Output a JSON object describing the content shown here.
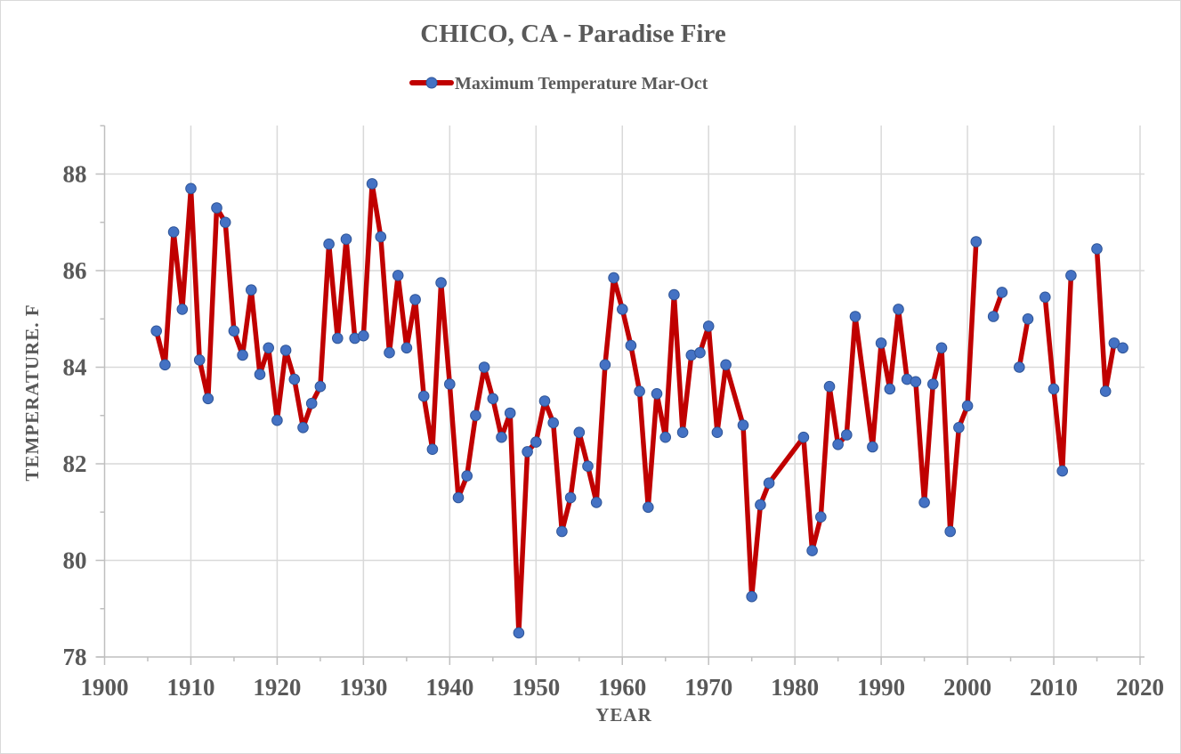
{
  "chart_data": {
    "type": "line",
    "title": "CHICO, CA - Paradise Fire",
    "legend_label": "Maximum Temperature Mar-Oct",
    "legend_position": "top",
    "xlabel": "YEAR",
    "ylabel": "TEMPERATURE. F",
    "xlim": [
      1900,
      2020
    ],
    "ylim": [
      78,
      89
    ],
    "x_ticks": [
      1900,
      1910,
      1920,
      1930,
      1940,
      1950,
      1960,
      1970,
      1980,
      1990,
      2000,
      2010,
      2020
    ],
    "y_ticks": [
      78,
      80,
      82,
      84,
      86,
      88
    ],
    "y_minor_tick_step": 1,
    "grid": true,
    "colors": {
      "line": "#C00000",
      "marker_fill": "#4472C4",
      "marker_edge": "#2F5597",
      "grid": "#D9D9D9",
      "axis": "#BFBFBF",
      "text": "#595959"
    },
    "series": [
      {
        "name": "Maximum Temperature Mar-Oct",
        "points": [
          [
            1906,
            84.75
          ],
          [
            1907,
            84.05
          ],
          [
            1908,
            86.8
          ],
          [
            1909,
            85.2
          ],
          [
            1910,
            87.7
          ],
          [
            1911,
            84.15
          ],
          [
            1912,
            83.35
          ],
          [
            1913,
            87.3
          ],
          [
            1914,
            87.0
          ],
          [
            1915,
            84.75
          ],
          [
            1916,
            84.25
          ],
          [
            1917,
            85.6
          ],
          [
            1918,
            83.85
          ],
          [
            1919,
            84.4
          ],
          [
            1920,
            82.9
          ],
          [
            1921,
            84.35
          ],
          [
            1922,
            83.75
          ],
          [
            1923,
            82.75
          ],
          [
            1924,
            83.25
          ],
          [
            1925,
            83.6
          ],
          [
            1926,
            86.55
          ],
          [
            1927,
            84.6
          ],
          [
            1928,
            86.65
          ],
          [
            1929,
            84.6
          ],
          [
            1930,
            84.65
          ],
          [
            1931,
            87.8
          ],
          [
            1932,
            86.7
          ],
          [
            1933,
            84.3
          ],
          [
            1934,
            85.9
          ],
          [
            1935,
            84.4
          ],
          [
            1936,
            85.4
          ],
          [
            1937,
            83.4
          ],
          [
            1938,
            82.3
          ],
          [
            1939,
            85.75
          ],
          [
            1940,
            83.65
          ],
          [
            1941,
            81.3
          ],
          [
            1942,
            81.75
          ],
          [
            1943,
            83.0
          ],
          [
            1944,
            84.0
          ],
          [
            1945,
            83.35
          ],
          [
            1946,
            82.55
          ],
          [
            1947,
            83.05
          ],
          [
            1948,
            78.5
          ],
          [
            1949,
            82.25
          ],
          [
            1950,
            82.45
          ],
          [
            1951,
            83.3
          ],
          [
            1952,
            82.85
          ],
          [
            1953,
            80.6
          ],
          [
            1954,
            81.3
          ],
          [
            1955,
            82.65
          ],
          [
            1956,
            81.95
          ],
          [
            1957,
            81.2
          ],
          [
            1958,
            84.05
          ],
          [
            1959,
            85.85
          ],
          [
            1960,
            85.2
          ],
          [
            1961,
            84.45
          ],
          [
            1962,
            83.5
          ],
          [
            1963,
            81.1
          ],
          [
            1964,
            83.45
          ],
          [
            1965,
            82.55
          ],
          [
            1966,
            85.5
          ],
          [
            1967,
            82.65
          ],
          [
            1968,
            84.25
          ],
          [
            1969,
            84.3
          ],
          [
            1970,
            84.85
          ],
          [
            1971,
            82.65
          ],
          [
            1972,
            84.05
          ],
          [
            1974,
            82.8
          ],
          [
            1975,
            79.25
          ],
          [
            1976,
            81.15
          ],
          [
            1977,
            81.6
          ],
          [
            1981,
            82.55
          ],
          [
            1982,
            80.2
          ],
          [
            1983,
            80.9
          ],
          [
            1984,
            83.6
          ],
          [
            1985,
            82.4
          ],
          [
            1986,
            82.6
          ],
          [
            1987,
            85.05
          ],
          [
            1989,
            82.35
          ],
          [
            1990,
            84.5
          ],
          [
            1991,
            83.55
          ],
          [
            1992,
            85.2
          ],
          [
            1993,
            83.75
          ],
          [
            1994,
            83.7
          ],
          [
            1995,
            81.2
          ],
          [
            1996,
            83.65
          ],
          [
            1997,
            84.4
          ],
          [
            1998,
            80.6
          ],
          [
            1999,
            82.75
          ],
          [
            2000,
            83.2
          ],
          [
            2001,
            86.6
          ],
          [
            2002,
            null
          ],
          [
            2003,
            85.05
          ],
          [
            2004,
            85.55
          ],
          [
            2005,
            null
          ],
          [
            2006,
            84.0
          ],
          [
            2007,
            85.0
          ],
          [
            2008,
            null
          ],
          [
            2009,
            85.45
          ],
          [
            2010,
            83.55
          ],
          [
            2011,
            81.85
          ],
          [
            2012,
            85.9
          ],
          [
            2013,
            null
          ],
          [
            2014,
            null
          ],
          [
            2015,
            86.45
          ],
          [
            2016,
            83.5
          ],
          [
            2017,
            84.5
          ],
          [
            2018,
            84.4
          ]
        ]
      }
    ]
  }
}
